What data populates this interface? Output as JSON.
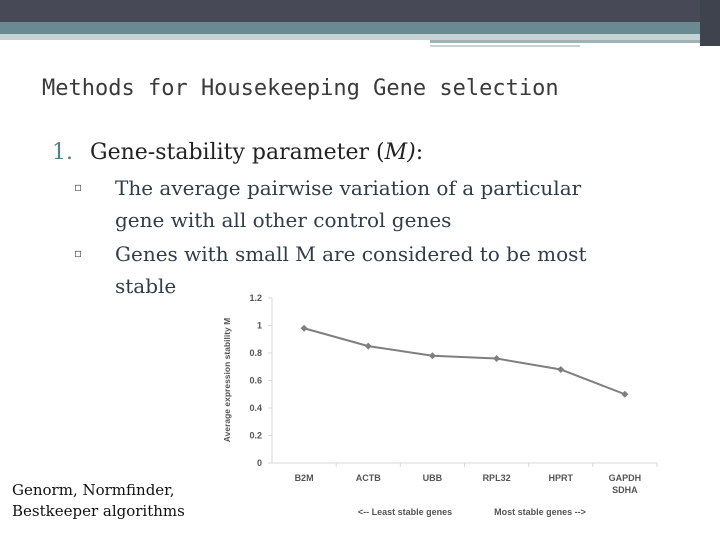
{
  "slide": {
    "title": "Methods for Housekeeping Gene selection",
    "point1": {
      "number": "1.",
      "text_pre": "Gene-stability parameter (",
      "text_em": "M)",
      "text_post": ":"
    },
    "subpoints": [
      {
        "bullet": "▫",
        "line1": "The average pairwise variation of a particular",
        "line2": "gene with all other control genes"
      },
      {
        "bullet": "▫",
        "line1": "Genes with small M are considered to be most",
        "line2": "stable"
      }
    ],
    "footnote": {
      "line1": "Genorm, Normfinder,",
      "line2": "Bestkeeper algorithms"
    }
  },
  "chart_data": {
    "type": "line",
    "categories": [
      "B2M",
      "ACTB",
      "UBB",
      "RPL32",
      "HPRT",
      "GAPDH SDHA"
    ],
    "category_lines": [
      [
        "B2M"
      ],
      [
        "ACTB"
      ],
      [
        "UBB"
      ],
      [
        "RPL32"
      ],
      [
        "HPRT"
      ],
      [
        "GAPDH",
        "SDHA"
      ]
    ],
    "values": [
      0.98,
      0.85,
      0.78,
      0.76,
      0.68,
      0.5
    ],
    "ylabel": "Average expression stability M",
    "xlabel_left": "<-- Least stable genes",
    "xlabel_right": "Most stable genes -->",
    "ylim": [
      0,
      1.2
    ],
    "yticks": [
      "0",
      "0.2",
      "0.4",
      "0.6",
      "0.8",
      "1",
      "1.2"
    ],
    "line_color": "#7f7f7f",
    "marker_color": "#7f7f7f",
    "grid": false
  }
}
